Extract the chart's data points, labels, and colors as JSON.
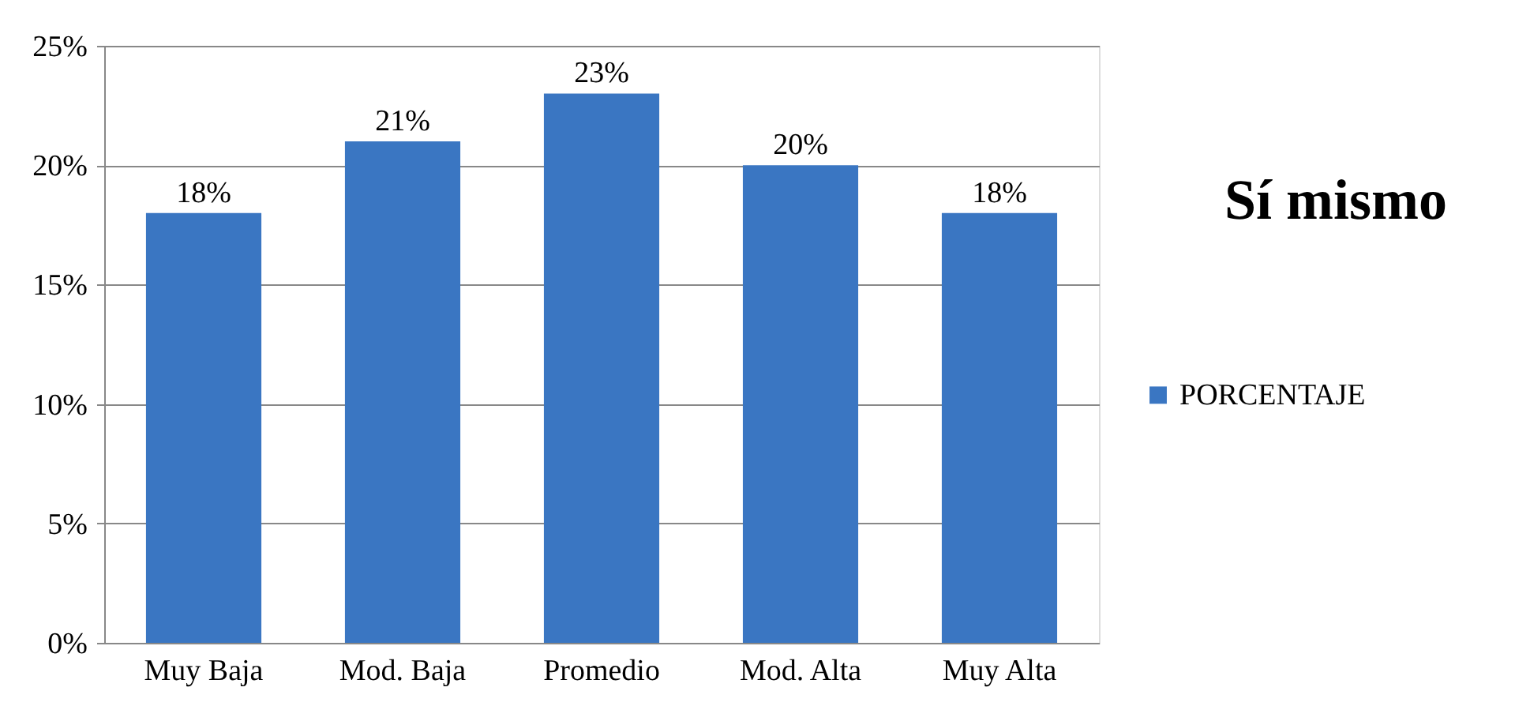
{
  "chart_data": {
    "type": "bar",
    "title": "Sí mismo",
    "categories": [
      "Muy Baja",
      "Mod. Baja",
      "Promedio",
      "Mod. Alta",
      "Muy Alta"
    ],
    "series": [
      {
        "name": "PORCENTAJE",
        "color": "#3a76c2",
        "values": [
          18,
          21,
          23,
          20,
          18
        ],
        "value_labels": [
          "18%",
          "21%",
          "23%",
          "20%",
          "18%"
        ]
      }
    ],
    "ylim": [
      0,
      25
    ],
    "yticks": [
      {
        "value": 0,
        "label": "0%"
      },
      {
        "value": 5,
        "label": "5%"
      },
      {
        "value": 10,
        "label": "10%"
      },
      {
        "value": 15,
        "label": "15%"
      },
      {
        "value": 20,
        "label": "20%"
      },
      {
        "value": 25,
        "label": "25%"
      }
    ],
    "grid": "y",
    "legend": "right"
  }
}
